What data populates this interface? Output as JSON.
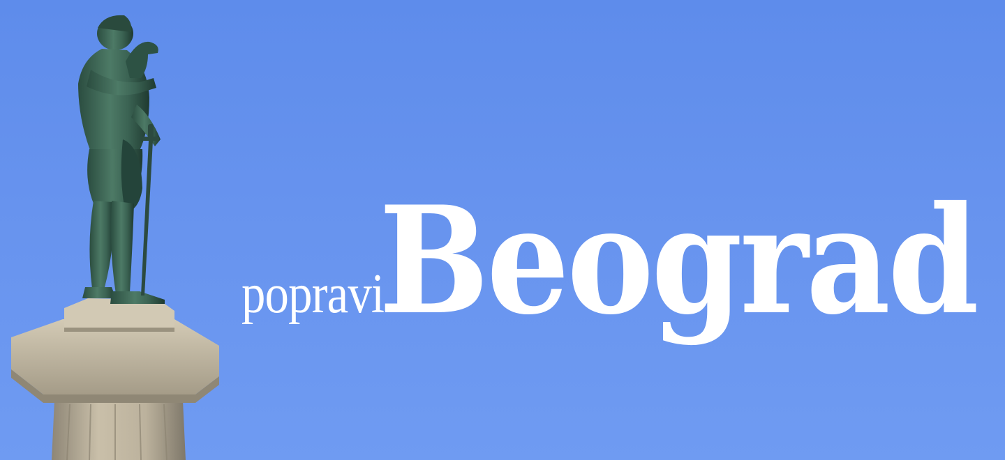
{
  "banner": {
    "title_prefix": "popravi",
    "title_main": "Beograd"
  },
  "colors": {
    "sky_top": "#5e8ceb",
    "sky_bottom": "#6f9bf2",
    "text": "#ffffff",
    "statue_bronze": "#3c6655",
    "column_stone": "#b8ad98"
  },
  "icons": {
    "monument": "victor-statue-on-column"
  }
}
